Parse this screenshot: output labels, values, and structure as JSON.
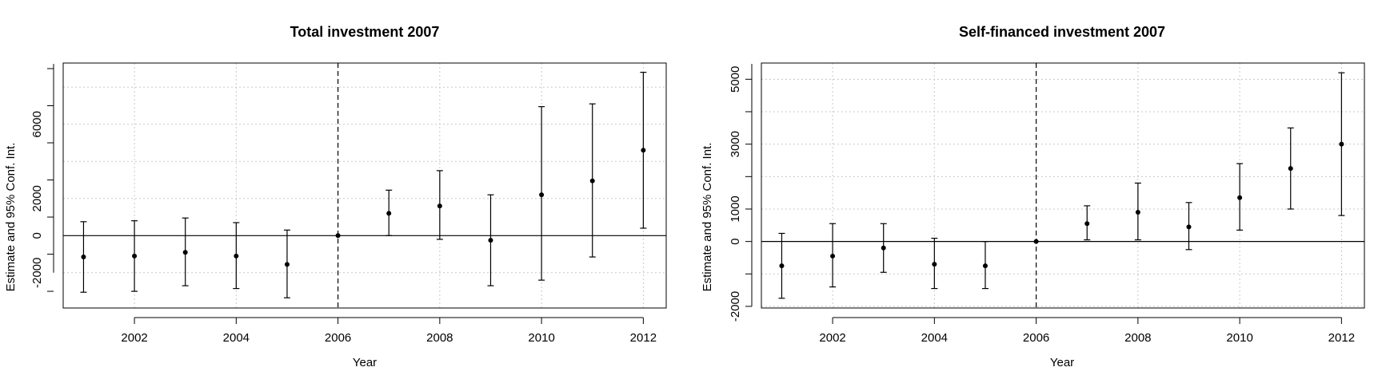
{
  "chart_data": [
    {
      "type": "scatter",
      "subtype": "point-estimate-with-95-confidence-intervals",
      "title": "Total investment 2007",
      "xlabel": "Year",
      "ylabel": "Estimate and 95% Conf. Int.",
      "x": [
        2001,
        2002,
        2003,
        2004,
        2005,
        2006,
        2007,
        2008,
        2009,
        2010,
        2011,
        2012
      ],
      "estimate": [
        -1150,
        -1100,
        -900,
        -1100,
        -1550,
        0,
        1200,
        1600,
        -250,
        2200,
        2950,
        4600
      ],
      "ci_lower": [
        -3050,
        -3000,
        -2700,
        -2850,
        -3350,
        0,
        0,
        -200,
        -2700,
        -2400,
        -1150,
        400
      ],
      "ci_upper": [
        750,
        800,
        950,
        700,
        300,
        0,
        2450,
        3500,
        2200,
        6950,
        7100,
        8800
      ],
      "xlim": [
        2000.6,
        2012.45
      ],
      "ylim": [
        -3900,
        9300
      ],
      "xticks": [
        "2002",
        "2004",
        "2006",
        "2008",
        "2010",
        "2012"
      ],
      "yticks": [
        "-2000",
        "0",
        "2000",
        "6000"
      ],
      "reference_line_y": 0,
      "reference_line_x": 2006,
      "grid": true
    },
    {
      "type": "scatter",
      "subtype": "point-estimate-with-95-confidence-intervals",
      "title": "Self-financed investment 2007",
      "xlabel": "Year",
      "ylabel": "Estimate and 95% Conf. Int.",
      "x": [
        2001,
        2002,
        2003,
        2004,
        2005,
        2006,
        2007,
        2008,
        2009,
        2010,
        2011,
        2012
      ],
      "estimate": [
        -750,
        -450,
        -200,
        -700,
        -750,
        0,
        550,
        900,
        450,
        1350,
        2250,
        3000
      ],
      "ci_lower": [
        -1750,
        -1400,
        -950,
        -1450,
        -1450,
        0,
        50,
        50,
        -250,
        350,
        1000,
        800
      ],
      "ci_upper": [
        250,
        550,
        550,
        100,
        0,
        0,
        1100,
        1800,
        1200,
        2400,
        3500,
        5200
      ],
      "xlim": [
        2000.6,
        2012.45
      ],
      "ylim": [
        -2050,
        5500
      ],
      "xticks": [
        "2002",
        "2004",
        "2006",
        "2008",
        "2010",
        "2012"
      ],
      "yticks": [
        "-2000",
        "0",
        "1000",
        "3000",
        "5000"
      ],
      "reference_line_y": 0,
      "reference_line_x": 2006,
      "grid": true
    }
  ]
}
